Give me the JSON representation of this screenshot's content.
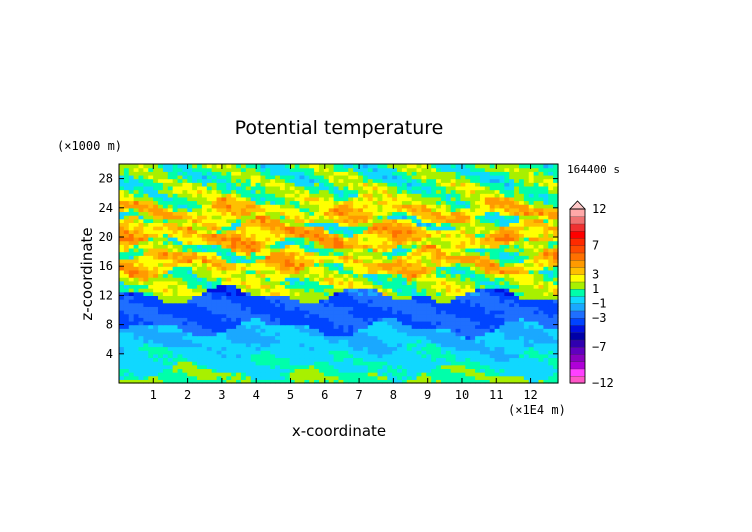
{
  "chart_data": {
    "type": "heatmap",
    "title": "Potential temperature",
    "xlabel": "x-coordinate",
    "ylabel": "z-coordinate",
    "x_unit": "(×1E4 m)",
    "y_unit": "(×1000 m)",
    "time_label": "164400 s",
    "xlim": [
      0,
      12.8
    ],
    "ylim": [
      0,
      30
    ],
    "x_ticks": [
      "1",
      "2",
      "3",
      "4",
      "5",
      "6",
      "7",
      "8",
      "9",
      "10",
      "11",
      "12"
    ],
    "y_ticks": [
      "4",
      "8",
      "12",
      "16",
      "20",
      "24",
      "28"
    ],
    "colorbar": {
      "label_values": [
        "12",
        "7",
        "3",
        "1",
        "−1",
        "−3",
        "−7",
        "−12"
      ],
      "levels": [
        -12,
        -11,
        -10,
        -9,
        -8,
        -7,
        -6,
        -5,
        -4,
        -3,
        -2,
        -1,
        0,
        1,
        2,
        3,
        4,
        5,
        6,
        7,
        8,
        9,
        10,
        11,
        12
      ],
      "colors": [
        "#ff55c8",
        "#ff40ff",
        "#b000d8",
        "#8a00c0",
        "#6000c0",
        "#3000b0",
        "#0000a8",
        "#0010e0",
        "#0044ff",
        "#1f6fff",
        "#1aa8ff",
        "#10d8ff",
        "#00ffaa",
        "#a8f000",
        "#ffff00",
        "#ffc000",
        "#ff9a00",
        "#ff7000",
        "#ff4a00",
        "#ff2a00",
        "#ff0000",
        "#f03030",
        "#f07070",
        "#ffa8a8",
        "#ffc8c8"
      ]
    },
    "layers": [
      {
        "z": [
          0,
          1.5
        ],
        "value": 0.6
      },
      {
        "z": [
          1.5,
          4.5
        ],
        "value": -0.7
      },
      {
        "z": [
          4.5,
          7.5
        ],
        "value": -1.5
      },
      {
        "z": [
          7.5,
          12.2
        ],
        "value": -3.5
      },
      {
        "z": [
          12.2,
          13.5
        ],
        "value": 1.2
      },
      {
        "z": [
          13.5,
          15.5
        ],
        "value": 0.8
      },
      {
        "z": [
          15.5,
          17.5
        ],
        "value": 3.0
      },
      {
        "z": [
          17.5,
          19.0
        ],
        "value": 0.5
      },
      {
        "z": [
          19.0,
          21.5
        ],
        "value": 3.2
      },
      {
        "z": [
          21.5,
          22.5
        ],
        "value": 0.3
      },
      {
        "z": [
          22.5,
          24.5
        ],
        "value": 2.8
      },
      {
        "z": [
          24.5,
          27.0
        ],
        "value": 0.9
      },
      {
        "z": [
          27.0,
          30.0
        ],
        "value": 0.2
      }
    ]
  }
}
